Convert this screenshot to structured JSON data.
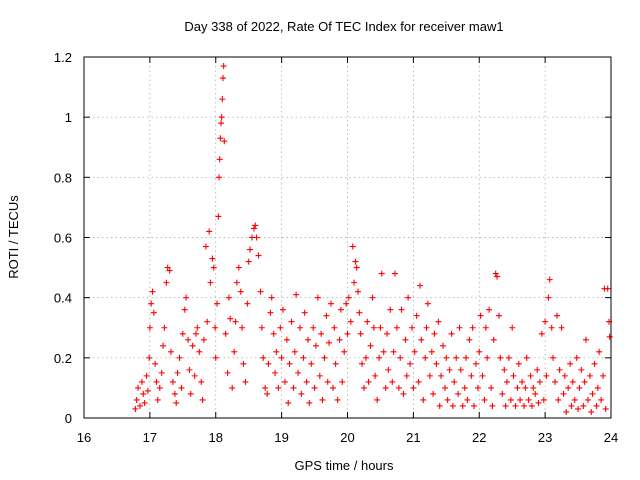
{
  "chart_data": {
    "type": "scatter",
    "title": "Day 338 of 2022, Rate Of TEC Index for receiver maw1",
    "xlabel": "GPS time / hours",
    "ylabel": "ROTI / TECUs",
    "xlim": [
      16,
      24
    ],
    "ylim": [
      0,
      1.2
    ],
    "x_ticks": [
      "16",
      "17",
      "18",
      "19",
      "20",
      "21",
      "22",
      "23",
      "24"
    ],
    "y_ticks": [
      "0",
      "0.2",
      "0.4",
      "0.6",
      "0.8",
      "1",
      "1.2"
    ],
    "grid": true,
    "marker": "+",
    "color": "#ff0000",
    "series": [
      {
        "values": [
          [
            16.78,
            0.03
          ],
          [
            16.8,
            0.06
          ],
          [
            16.82,
            0.1
          ],
          [
            16.85,
            0.04
          ],
          [
            16.88,
            0.12
          ],
          [
            16.9,
            0.08
          ],
          [
            16.92,
            0.05
          ],
          [
            16.95,
            0.14
          ],
          [
            16.97,
            0.09
          ],
          [
            16.99,
            0.2
          ],
          [
            17.0,
            0.3
          ],
          [
            17.02,
            0.38
          ],
          [
            17.04,
            0.42
          ],
          [
            17.06,
            0.35
          ],
          [
            17.08,
            0.18
          ],
          [
            17.1,
            0.12
          ],
          [
            17.12,
            0.06
          ],
          [
            17.15,
            0.1
          ],
          [
            17.18,
            0.15
          ],
          [
            17.2,
            0.24
          ],
          [
            17.22,
            0.3
          ],
          [
            17.25,
            0.45
          ],
          [
            17.27,
            0.5
          ],
          [
            17.3,
            0.49
          ],
          [
            17.32,
            0.22
          ],
          [
            17.35,
            0.12
          ],
          [
            17.38,
            0.08
          ],
          [
            17.4,
            0.05
          ],
          [
            17.42,
            0.15
          ],
          [
            17.45,
            0.2
          ],
          [
            17.48,
            0.1
          ],
          [
            17.5,
            0.28
          ],
          [
            17.53,
            0.36
          ],
          [
            17.55,
            0.4
          ],
          [
            17.58,
            0.26
          ],
          [
            17.6,
            0.16
          ],
          [
            17.62,
            0.08
          ],
          [
            17.65,
            0.24
          ],
          [
            17.68,
            0.14
          ],
          [
            17.7,
            0.28
          ],
          [
            17.72,
            0.3
          ],
          [
            17.75,
            0.22
          ],
          [
            17.78,
            0.12
          ],
          [
            17.8,
            0.06
          ],
          [
            17.82,
            0.26
          ],
          [
            17.85,
            0.57
          ],
          [
            17.87,
            0.32
          ],
          [
            17.9,
            0.62
          ],
          [
            17.92,
            0.45
          ],
          [
            17.95,
            0.53
          ],
          [
            17.97,
            0.5
          ],
          [
            17.99,
            0.3
          ],
          [
            18.0,
            0.2
          ],
          [
            18.02,
            0.38
          ],
          [
            18.04,
            0.67
          ],
          [
            18.05,
            0.8
          ],
          [
            18.06,
            0.86
          ],
          [
            18.07,
            0.93
          ],
          [
            18.08,
            0.98
          ],
          [
            18.09,
            1.0
          ],
          [
            18.1,
            1.06
          ],
          [
            18.11,
            1.13
          ],
          [
            18.12,
            1.17
          ],
          [
            18.13,
            0.92
          ],
          [
            18.15,
            0.28
          ],
          [
            18.18,
            0.15
          ],
          [
            18.2,
            0.4
          ],
          [
            18.22,
            0.33
          ],
          [
            18.25,
            0.1
          ],
          [
            18.28,
            0.22
          ],
          [
            18.3,
            0.32
          ],
          [
            18.32,
            0.45
          ],
          [
            18.35,
            0.5
          ],
          [
            18.38,
            0.42
          ],
          [
            18.4,
            0.3
          ],
          [
            18.42,
            0.18
          ],
          [
            18.45,
            0.12
          ],
          [
            18.48,
            0.38
          ],
          [
            18.5,
            0.52
          ],
          [
            18.52,
            0.56
          ],
          [
            18.55,
            0.6
          ],
          [
            18.58,
            0.63
          ],
          [
            18.6,
            0.64
          ],
          [
            18.62,
            0.6
          ],
          [
            18.65,
            0.54
          ],
          [
            18.68,
            0.42
          ],
          [
            18.7,
            0.3
          ],
          [
            18.72,
            0.2
          ],
          [
            18.75,
            0.1
          ],
          [
            18.78,
            0.08
          ],
          [
            18.8,
            0.18
          ],
          [
            18.83,
            0.35
          ],
          [
            18.85,
            0.4
          ],
          [
            18.88,
            0.28
          ],
          [
            18.9,
            0.15
          ],
          [
            18.92,
            0.22
          ],
          [
            18.95,
            0.1
          ],
          [
            18.98,
            0.3
          ],
          [
            19.0,
            0.2
          ],
          [
            19.02,
            0.36
          ],
          [
            19.05,
            0.12
          ],
          [
            19.08,
            0.26
          ],
          [
            19.1,
            0.05
          ],
          [
            19.12,
            0.18
          ],
          [
            19.15,
            0.32
          ],
          [
            19.18,
            0.1
          ],
          [
            19.2,
            0.22
          ],
          [
            19.22,
            0.41
          ],
          [
            19.25,
            0.15
          ],
          [
            19.28,
            0.3
          ],
          [
            19.3,
            0.08
          ],
          [
            19.33,
            0.2
          ],
          [
            19.35,
            0.35
          ],
          [
            19.38,
            0.12
          ],
          [
            19.4,
            0.26
          ],
          [
            19.42,
            0.05
          ],
          [
            19.45,
            0.18
          ],
          [
            19.48,
            0.3
          ],
          [
            19.5,
            0.1
          ],
          [
            19.52,
            0.24
          ],
          [
            19.55,
            0.4
          ],
          [
            19.58,
            0.14
          ],
          [
            19.6,
            0.28
          ],
          [
            19.62,
            0.06
          ],
          [
            19.65,
            0.2
          ],
          [
            19.68,
            0.34
          ],
          [
            19.7,
            0.12
          ],
          [
            19.72,
            0.25
          ],
          [
            19.75,
            0.38
          ],
          [
            19.78,
            0.1
          ],
          [
            19.8,
            0.3
          ],
          [
            19.82,
            0.18
          ],
          [
            19.85,
            0.06
          ],
          [
            19.88,
            0.26
          ],
          [
            19.9,
            0.36
          ],
          [
            19.92,
            0.12
          ],
          [
            19.95,
            0.22
          ],
          [
            19.98,
            0.38
          ],
          [
            20.0,
            0.28
          ],
          [
            20.02,
            0.4
          ],
          [
            20.05,
            0.32
          ],
          [
            20.08,
            0.57
          ],
          [
            20.1,
            0.45
          ],
          [
            20.12,
            0.52
          ],
          [
            20.14,
            0.5
          ],
          [
            20.16,
            0.42
          ],
          [
            20.18,
            0.35
          ],
          [
            20.2,
            0.28
          ],
          [
            20.22,
            0.18
          ],
          [
            20.25,
            0.1
          ],
          [
            20.28,
            0.2
          ],
          [
            20.3,
            0.32
          ],
          [
            20.32,
            0.12
          ],
          [
            20.35,
            0.24
          ],
          [
            20.38,
            0.4
          ],
          [
            20.4,
            0.3
          ],
          [
            20.42,
            0.14
          ],
          [
            20.45,
            0.06
          ],
          [
            20.48,
            0.2
          ],
          [
            20.5,
            0.3
          ],
          [
            20.52,
            0.48
          ],
          [
            20.55,
            0.22
          ],
          [
            20.58,
            0.1
          ],
          [
            20.6,
            0.28
          ],
          [
            20.62,
            0.16
          ],
          [
            20.65,
            0.36
          ],
          [
            20.68,
            0.12
          ],
          [
            20.7,
            0.22
          ],
          [
            20.72,
            0.48
          ],
          [
            20.75,
            0.3
          ],
          [
            20.78,
            0.1
          ],
          [
            20.8,
            0.2
          ],
          [
            20.82,
            0.36
          ],
          [
            20.85,
            0.08
          ],
          [
            20.88,
            0.26
          ],
          [
            20.9,
            0.14
          ],
          [
            20.92,
            0.4
          ],
          [
            20.95,
            0.18
          ],
          [
            20.98,
            0.3
          ],
          [
            21.0,
            0.1
          ],
          [
            21.02,
            0.22
          ],
          [
            21.05,
            0.34
          ],
          [
            21.08,
            0.12
          ],
          [
            21.1,
            0.44
          ],
          [
            21.12,
            0.26
          ],
          [
            21.15,
            0.06
          ],
          [
            21.18,
            0.2
          ],
          [
            21.2,
            0.3
          ],
          [
            21.22,
            0.38
          ],
          [
            21.25,
            0.14
          ],
          [
            21.28,
            0.22
          ],
          [
            21.3,
            0.08
          ],
          [
            21.32,
            0.28
          ],
          [
            21.35,
            0.18
          ],
          [
            21.38,
            0.32
          ],
          [
            21.4,
            0.04
          ],
          [
            21.42,
            0.14
          ],
          [
            21.45,
            0.24
          ],
          [
            21.48,
            0.1
          ],
          [
            21.5,
            0.2
          ],
          [
            21.52,
            0.06
          ],
          [
            21.55,
            0.16
          ],
          [
            21.58,
            0.28
          ],
          [
            21.6,
            0.04
          ],
          [
            21.62,
            0.12
          ],
          [
            21.65,
            0.2
          ],
          [
            21.68,
            0.08
          ],
          [
            21.7,
            0.3
          ],
          [
            21.72,
            0.16
          ],
          [
            21.75,
            0.04
          ],
          [
            21.78,
            0.1
          ],
          [
            21.8,
            0.2
          ],
          [
            21.82,
            0.06
          ],
          [
            21.85,
            0.26
          ],
          [
            21.88,
            0.14
          ],
          [
            21.9,
            0.3
          ],
          [
            21.92,
            0.04
          ],
          [
            21.95,
            0.18
          ],
          [
            21.98,
            0.1
          ],
          [
            22.0,
            0.22
          ],
          [
            22.02,
            0.34
          ],
          [
            22.05,
            0.14
          ],
          [
            22.08,
            0.06
          ],
          [
            22.1,
            0.3
          ],
          [
            22.12,
            0.2
          ],
          [
            22.15,
            0.36
          ],
          [
            22.18,
            0.1
          ],
          [
            22.2,
            0.04
          ],
          [
            22.22,
            0.26
          ],
          [
            22.25,
            0.48
          ],
          [
            22.27,
            0.47
          ],
          [
            22.3,
            0.34
          ],
          [
            22.32,
            0.2
          ],
          [
            22.35,
            0.08
          ],
          [
            22.38,
            0.16
          ],
          [
            22.4,
            0.04
          ],
          [
            22.42,
            0.12
          ],
          [
            22.45,
            0.2
          ],
          [
            22.48,
            0.06
          ],
          [
            22.5,
            0.3
          ],
          [
            22.52,
            0.14
          ],
          [
            22.55,
            0.04
          ],
          [
            22.58,
            0.1
          ],
          [
            22.6,
            0.18
          ],
          [
            22.62,
            0.06
          ],
          [
            22.65,
            0.12
          ],
          [
            22.68,
            0.04
          ],
          [
            22.7,
            0.1
          ],
          [
            22.72,
            0.2
          ],
          [
            22.75,
            0.06
          ],
          [
            22.78,
            0.14
          ],
          [
            22.8,
            0.04
          ],
          [
            22.82,
            0.1
          ],
          [
            22.85,
            0.08
          ],
          [
            22.88,
            0.16
          ],
          [
            22.9,
            0.05
          ],
          [
            22.92,
            0.12
          ],
          [
            22.95,
            0.28
          ],
          [
            22.98,
            0.06
          ],
          [
            23.0,
            0.32
          ],
          [
            23.02,
            0.14
          ],
          [
            23.05,
            0.4
          ],
          [
            23.07,
            0.46
          ],
          [
            23.1,
            0.3
          ],
          [
            23.12,
            0.2
          ],
          [
            23.15,
            0.12
          ],
          [
            23.18,
            0.34
          ],
          [
            23.2,
            0.06
          ],
          [
            23.22,
            0.16
          ],
          [
            23.25,
            0.3
          ],
          [
            23.28,
            0.08
          ],
          [
            23.3,
            0.14
          ],
          [
            23.32,
            0.02
          ],
          [
            23.35,
            0.1
          ],
          [
            23.38,
            0.18
          ],
          [
            23.4,
            0.04
          ],
          [
            23.42,
            0.12
          ],
          [
            23.45,
            0.06
          ],
          [
            23.48,
            0.2
          ],
          [
            23.5,
            0.03
          ],
          [
            23.52,
            0.1
          ],
          [
            23.55,
            0.16
          ],
          [
            23.58,
            0.04
          ],
          [
            23.6,
            0.12
          ],
          [
            23.62,
            0.26
          ],
          [
            23.65,
            0.06
          ],
          [
            23.68,
            0.14
          ],
          [
            23.7,
            0.02
          ],
          [
            23.72,
            0.08
          ],
          [
            23.75,
            0.18
          ],
          [
            23.78,
            0.04
          ],
          [
            23.8,
            0.1
          ],
          [
            23.82,
            0.22
          ],
          [
            23.85,
            0.06
          ],
          [
            23.88,
            0.14
          ],
          [
            23.9,
            0.43
          ],
          [
            23.92,
            0.03
          ],
          [
            23.95,
            0.43
          ],
          [
            23.97,
            0.32
          ],
          [
            23.98,
            0.27
          ]
        ]
      }
    ]
  }
}
